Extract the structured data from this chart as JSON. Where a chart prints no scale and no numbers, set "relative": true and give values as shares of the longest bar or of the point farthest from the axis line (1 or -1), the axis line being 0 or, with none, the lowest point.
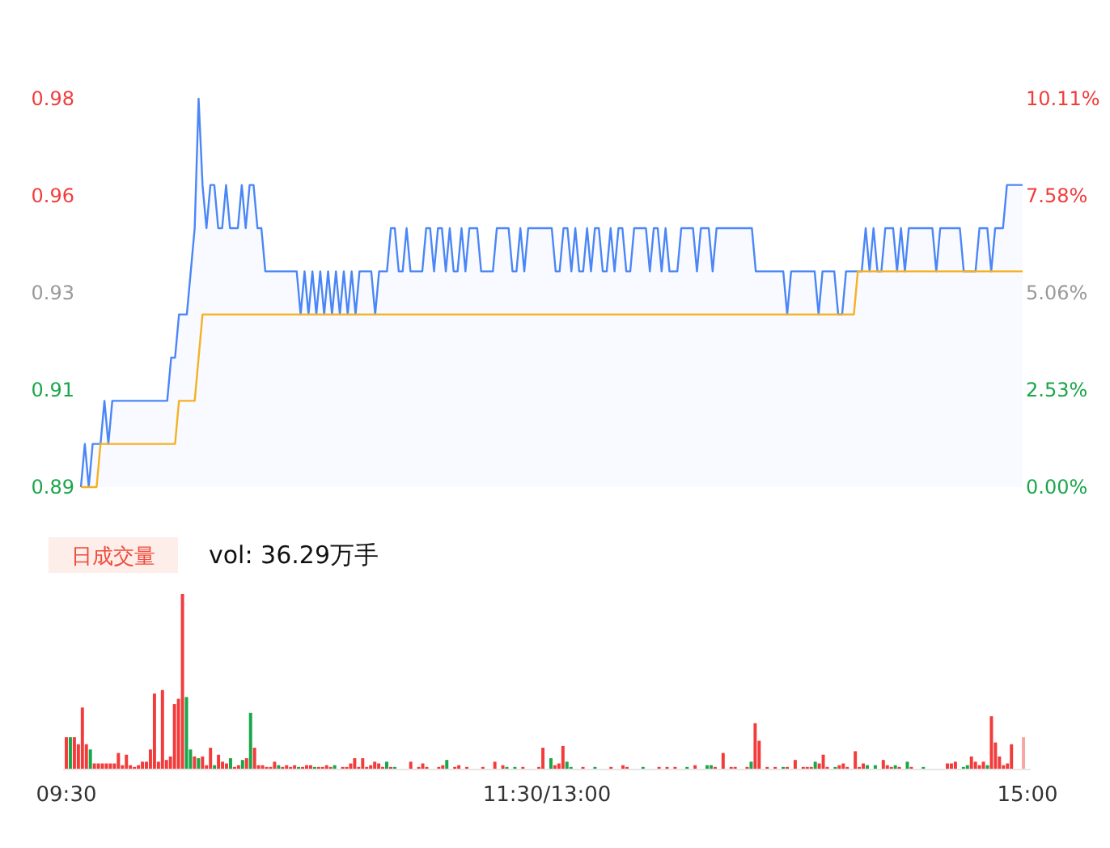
{
  "chart_data": [
    {
      "type": "line",
      "ylim": [
        0.89,
        0.98
      ],
      "yticks": [
        {
          "value": 0.89,
          "label": "0.89"
        },
        {
          "value": 0.9125,
          "label": "0.91"
        },
        {
          "value": 0.935,
          "label": "0.93"
        },
        {
          "value": 0.9575,
          "label": "0.96"
        },
        {
          "value": 0.98,
          "label": "0.98"
        }
      ],
      "y2lim": [
        0,
        10.11
      ],
      "y2ticks": [
        {
          "value": 0,
          "label": "0.00%"
        },
        {
          "value": 2.53,
          "label": "2.53%"
        },
        {
          "value": 5.06,
          "label": "5.06%"
        },
        {
          "value": 7.58,
          "label": "7.58%"
        },
        {
          "value": 10.11,
          "label": "10.11%"
        }
      ],
      "tick_labels": "y",
      "categories": [
        null,
        null,
        null,
        null,
        null,
        null,
        null,
        null,
        null,
        null,
        null,
        null,
        null,
        null,
        null,
        null,
        null,
        null,
        null,
        null,
        null,
        null,
        null,
        null,
        null,
        null,
        null,
        null,
        null,
        null,
        null,
        null,
        null,
        null,
        null,
        null,
        null,
        null,
        null,
        null,
        null,
        null,
        null,
        null,
        null,
        null,
        null,
        null,
        null,
        null,
        null,
        null,
        null,
        null,
        null,
        null,
        null,
        null,
        null,
        null,
        null,
        null,
        null,
        null,
        null,
        null,
        null,
        null,
        null,
        null,
        null,
        null,
        null,
        null,
        null,
        null,
        null,
        null,
        null,
        null,
        null,
        null,
        null,
        null,
        null,
        null,
        null,
        null,
        null,
        null,
        null,
        null,
        null,
        null,
        null,
        null,
        null,
        null,
        null,
        null,
        null,
        null,
        null,
        null,
        null,
        null,
        null,
        null,
        null,
        null,
        null,
        null,
        null,
        null,
        null,
        null,
        null,
        null,
        null,
        null,
        null,
        null,
        null,
        null,
        null,
        null,
        null,
        null,
        null,
        null,
        null,
        null,
        null,
        null,
        null,
        null,
        null,
        null,
        null,
        null,
        null,
        null,
        null,
        null,
        null,
        null,
        null,
        null,
        null,
        null,
        null,
        null,
        null,
        null,
        null,
        null,
        null,
        null,
        null,
        null,
        null,
        null,
        null,
        null,
        null,
        null,
        null,
        null,
        null,
        null,
        null,
        null,
        null,
        null,
        null,
        null,
        null,
        null,
        null,
        null,
        null,
        null,
        null,
        null,
        null,
        null,
        null,
        null,
        null,
        null,
        null,
        null,
        null,
        null,
        null,
        null,
        null,
        null,
        null,
        null,
        null,
        null,
        null,
        null,
        null,
        null,
        null,
        null,
        null,
        null,
        null,
        null,
        null,
        null,
        null,
        null,
        null,
        null,
        null,
        null,
        null,
        null,
        null,
        null,
        null,
        null,
        null,
        null,
        null,
        null,
        null,
        null,
        null,
        null,
        null,
        null,
        null,
        null,
        null,
        null,
        null
      ],
      "series": [
        {
          "type": "area",
          "color": "#4a86f7",
          "values": [
            0.89,
            0.9,
            0.89,
            0.9,
            0.9,
            0.9,
            0.91,
            0.9,
            0.91,
            0.91,
            0.91,
            0.91,
            0.91,
            0.91,
            0.91,
            0.91,
            0.91,
            0.91,
            0.91,
            0.91,
            0.91,
            0.91,
            0.91,
            0.92,
            0.92,
            0.93,
            0.93,
            0.93,
            0.94,
            0.95,
            0.98,
            0.96,
            0.95,
            0.96,
            0.96,
            0.95,
            0.95,
            0.96,
            0.95,
            0.95,
            0.95,
            0.96,
            0.95,
            0.96,
            0.96,
            0.95,
            0.95,
            0.94,
            0.94,
            0.94,
            0.94,
            0.94,
            0.94,
            0.94,
            0.94,
            0.94,
            0.93,
            0.94,
            0.93,
            0.94,
            0.93,
            0.94,
            0.93,
            0.94,
            0.93,
            0.94,
            0.93,
            0.94,
            0.93,
            0.94,
            0.93,
            0.94,
            0.94,
            0.94,
            0.94,
            0.93,
            0.94,
            0.94,
            0.94,
            0.95,
            0.95,
            0.94,
            0.94,
            0.95,
            0.94,
            0.94,
            0.94,
            0.94,
            0.95,
            0.95,
            0.94,
            0.95,
            0.95,
            0.94,
            0.95,
            0.94,
            0.94,
            0.95,
            0.94,
            0.95,
            0.95,
            0.95,
            0.94,
            0.94,
            0.94,
            0.94,
            0.95,
            0.95,
            0.95,
            0.95,
            0.94,
            0.94,
            0.95,
            0.94,
            0.95,
            0.95,
            0.95,
            0.95,
            0.95,
            0.95,
            0.95,
            0.94,
            0.94,
            0.95,
            0.95,
            0.94,
            0.95,
            0.94,
            0.94,
            0.95,
            0.94,
            0.95,
            0.95,
            0.94,
            0.94,
            0.95,
            0.94,
            0.95,
            0.95,
            0.94,
            0.94,
            0.95,
            0.95,
            0.95,
            0.95,
            0.94,
            0.95,
            0.95,
            0.94,
            0.95,
            0.94,
            0.94,
            0.94,
            0.95,
            0.95,
            0.95,
            0.95,
            0.94,
            0.95,
            0.95,
            0.95,
            0.94,
            0.95,
            0.95,
            0.95,
            0.95,
            0.95,
            0.95,
            0.95,
            0.95,
            0.95,
            0.95,
            0.94,
            0.94,
            0.94,
            0.94,
            0.94,
            0.94,
            0.94,
            0.94,
            0.93,
            0.94,
            0.94,
            0.94,
            0.94,
            0.94,
            0.94,
            0.94,
            0.93,
            0.94,
            0.94,
            0.94,
            0.94,
            0.93,
            0.93,
            0.94,
            0.94,
            0.94,
            0.94,
            0.94,
            0.95,
            0.94,
            0.95,
            0.94,
            0.94,
            0.95,
            0.95,
            0.95,
            0.94,
            0.95,
            0.94,
            0.95,
            0.95,
            0.95,
            0.95,
            0.95,
            0.95,
            0.95,
            0.94,
            0.95,
            0.95,
            0.95,
            0.95,
            0.95,
            0.95,
            0.94,
            0.94,
            0.94,
            0.94,
            0.95,
            0.95,
            0.95,
            0.94,
            0.95,
            0.95,
            0.95,
            0.96,
            0.96,
            0.96,
            0.96,
            0.96
          ]
        },
        {
          "type": "line",
          "color": "#f5b120",
          "values": [
            0.89,
            0.89,
            0.89,
            0.89,
            0.89,
            0.9,
            0.9,
            0.9,
            0.9,
            0.9,
            0.9,
            0.9,
            0.9,
            0.9,
            0.9,
            0.9,
            0.9,
            0.9,
            0.9,
            0.9,
            0.9,
            0.9,
            0.9,
            0.9,
            0.9,
            0.91,
            0.91,
            0.91,
            0.91,
            0.91,
            0.92,
            0.93,
            0.93,
            0.93,
            0.93,
            0.93,
            0.93,
            0.93,
            0.93,
            0.93,
            0.93,
            0.93,
            0.93,
            0.93,
            0.93,
            0.93,
            0.93,
            0.93,
            0.93,
            0.93,
            0.93,
            0.93,
            0.93,
            0.93,
            0.93,
            0.93,
            0.93,
            0.93,
            0.93,
            0.93,
            0.93,
            0.93,
            0.93,
            0.93,
            0.93,
            0.93,
            0.93,
            0.93,
            0.93,
            0.93,
            0.93,
            0.93,
            0.93,
            0.93,
            0.93,
            0.93,
            0.93,
            0.93,
            0.93,
            0.93,
            0.93,
            0.93,
            0.93,
            0.93,
            0.93,
            0.93,
            0.93,
            0.93,
            0.93,
            0.93,
            0.93,
            0.93,
            0.93,
            0.93,
            0.93,
            0.93,
            0.93,
            0.93,
            0.93,
            0.93,
            0.93,
            0.93,
            0.93,
            0.93,
            0.93,
            0.93,
            0.93,
            0.93,
            0.93,
            0.93,
            0.93,
            0.93,
            0.93,
            0.93,
            0.93,
            0.93,
            0.93,
            0.93,
            0.93,
            0.93,
            0.93,
            0.93,
            0.93,
            0.93,
            0.93,
            0.93,
            0.93,
            0.93,
            0.93,
            0.93,
            0.93,
            0.93,
            0.93,
            0.93,
            0.93,
            0.93,
            0.93,
            0.93,
            0.93,
            0.93,
            0.93,
            0.93,
            0.93,
            0.93,
            0.93,
            0.93,
            0.93,
            0.93,
            0.93,
            0.93,
            0.93,
            0.93,
            0.93,
            0.93,
            0.93,
            0.93,
            0.93,
            0.93,
            0.93,
            0.93,
            0.93,
            0.93,
            0.93,
            0.93,
            0.93,
            0.93,
            0.93,
            0.93,
            0.93,
            0.93,
            0.93,
            0.93,
            0.93,
            0.93,
            0.93,
            0.93,
            0.93,
            0.93,
            0.93,
            0.93,
            0.93,
            0.93,
            0.93,
            0.93,
            0.93,
            0.93,
            0.93,
            0.93,
            0.93,
            0.93,
            0.93,
            0.93,
            0.93,
            0.93,
            0.93,
            0.93,
            0.93,
            0.93,
            0.94,
            0.94,
            0.94,
            0.94,
            0.94,
            0.94,
            0.94,
            0.94,
            0.94,
            0.94,
            0.94,
            0.94,
            0.94,
            0.94,
            0.94,
            0.94,
            0.94,
            0.94,
            0.94,
            0.94,
            0.94,
            0.94,
            0.94,
            0.94,
            0.94,
            0.94,
            0.94,
            0.94,
            0.94,
            0.94,
            0.94,
            0.94,
            0.94,
            0.94,
            0.94,
            0.94,
            0.94,
            0.94,
            0.94,
            0.94,
            0.94,
            0.94,
            0.94
          ]
        }
      ]
    },
    {
      "type": "bar",
      "relative": true,
      "annotations": [
        "日成交量",
        "vol: 36.29万手"
      ],
      "categories": [
        "09:30",
        null,
        null,
        null,
        null,
        null,
        null,
        null,
        null,
        null,
        null,
        null,
        null,
        null,
        null,
        null,
        null,
        null,
        null,
        null,
        null,
        null,
        null,
        null,
        null,
        null,
        null,
        null,
        null,
        null,
        null,
        null,
        null,
        null,
        null,
        null,
        null,
        null,
        null,
        null,
        null,
        null,
        null,
        null,
        null,
        null,
        null,
        null,
        null,
        null,
        null,
        null,
        null,
        null,
        null,
        null,
        null,
        null,
        null,
        null,
        null,
        null,
        null,
        null,
        null,
        null,
        null,
        null,
        null,
        null,
        null,
        null,
        null,
        null,
        null,
        null,
        null,
        null,
        null,
        null,
        null,
        null,
        null,
        null,
        null,
        null,
        null,
        null,
        null,
        null,
        null,
        null,
        null,
        null,
        null,
        null,
        null,
        null,
        null,
        null,
        null,
        null,
        null,
        null,
        null,
        null,
        null,
        null,
        null,
        null,
        null,
        null,
        null,
        null,
        null,
        null,
        null,
        null,
        null,
        null,
        "11:30/13:00",
        null,
        null,
        null,
        null,
        null,
        null,
        null,
        null,
        null,
        null,
        null,
        null,
        null,
        null,
        null,
        null,
        null,
        null,
        null,
        null,
        null,
        null,
        null,
        null,
        null,
        null,
        null,
        null,
        null,
        null,
        null,
        null,
        null,
        null,
        null,
        null,
        null,
        null,
        null,
        null,
        null,
        null,
        null,
        null,
        null,
        null,
        null,
        null,
        null,
        null,
        null,
        null,
        null,
        null,
        null,
        null,
        null,
        null,
        null,
        null,
        null,
        null,
        null,
        null,
        null,
        null,
        null,
        null,
        null,
        null,
        null,
        null,
        null,
        null,
        null,
        null,
        null,
        null,
        null,
        null,
        null,
        null,
        null,
        null,
        null,
        null,
        null,
        null,
        null,
        null,
        null,
        null,
        null,
        null,
        null,
        null,
        null,
        null,
        null,
        null,
        null,
        null,
        null,
        null,
        null,
        null,
        null,
        null,
        null,
        null,
        null,
        null,
        null,
        null,
        null,
        null,
        null,
        null,
        null,
        "15:00"
      ],
      "values": [
        0.18,
        0.18,
        0.18,
        0.14,
        0.35,
        0.14,
        0.11,
        0.03,
        0.03,
        0.03,
        0.03,
        0.03,
        0.03,
        0.09,
        0.02,
        0.08,
        0.02,
        0.01,
        0.02,
        0.04,
        0.04,
        0.11,
        0.43,
        0.04,
        0.45,
        0.05,
        0.07,
        0.37,
        0.4,
        1,
        0.41,
        0.11,
        0.07,
        0.06,
        0.07,
        0.02,
        0.12,
        0.02,
        0.08,
        0.04,
        0.03,
        0.06,
        0.01,
        0.02,
        0.05,
        0.06,
        0.32,
        0.12,
        0.02,
        0.02,
        0.01,
        0.01,
        0.04,
        0.02,
        0.01,
        0.02,
        0.01,
        0.02,
        0.01,
        0.01,
        0.02,
        0.02,
        0.01,
        0.01,
        0.01,
        0.02,
        0.01,
        0.02,
        null,
        0.01,
        0.01,
        0.03,
        0.06,
        0.01,
        0.06,
        0.01,
        0.02,
        0.04,
        0.03,
        0.01,
        0.04,
        0.01,
        0.01,
        null,
        null,
        null,
        0.04,
        null,
        0.01,
        0.03,
        0.01,
        null,
        null,
        0.01,
        0.02,
        0.05,
        null,
        0.01,
        0.02,
        null,
        0.01,
        null,
        null,
        null,
        0.01,
        null,
        null,
        0.04,
        null,
        0.02,
        0.01,
        null,
        0.01,
        null,
        0.01,
        null,
        null,
        null,
        0.01,
        0.12,
        null,
        0.06,
        0.02,
        0.03,
        0.13,
        0.04,
        0.01,
        null,
        null,
        0.01,
        null,
        null,
        0.01,
        null,
        null,
        null,
        0.01,
        null,
        null,
        0.02,
        0.01,
        null,
        null,
        null,
        0.01,
        null,
        null,
        null,
        0.01,
        null,
        0.01,
        null,
        0.01,
        null,
        null,
        0.01,
        null,
        0.02,
        null,
        null,
        0.02,
        0.02,
        0.01,
        null,
        0.09,
        null,
        0.01,
        0.01,
        null,
        null,
        0.01,
        0.04,
        0.26,
        0.16,
        null,
        0.01,
        null,
        0.01,
        null,
        0.01,
        0.01,
        null,
        0.05,
        null,
        0.01,
        0.01,
        0.01,
        0.04,
        0.03,
        0.08,
        0.01,
        null,
        0.01,
        0.02,
        0.03,
        0.01,
        null,
        0.1,
        0.01,
        0.03,
        0.02,
        null,
        0.02,
        null,
        0.05,
        0.02,
        0.01,
        0.02,
        0.01,
        null,
        0.04,
        0.01,
        null,
        null,
        0.01,
        null,
        null,
        null,
        null,
        null,
        0.03,
        0.03,
        0.04,
        null,
        0.01,
        0.02,
        0.07,
        0.04,
        0.02,
        0.04,
        0.02,
        0.3,
        0.15,
        0.07,
        0.02,
        0.03,
        0.14,
        null,
        null,
        0.18,
        null
      ],
      "colors": [
        "#f23c3c",
        "#1aa64a",
        "#f23c3c",
        "#f23c3c",
        "#f23c3c",
        "#f23c3c",
        "#1aa64a",
        "#f23c3c",
        "#f23c3c",
        "#f23c3c",
        "#f23c3c",
        "#f23c3c",
        "#f23c3c",
        "#f23c3c",
        "#f23c3c",
        "#f23c3c",
        "#f23c3c",
        "#f23c3c",
        "#f23c3c",
        "#f23c3c",
        "#f23c3c",
        "#f23c3c",
        "#f23c3c",
        "#f23c3c",
        "#f23c3c",
        "#f23c3c",
        "#f23c3c",
        "#f23c3c",
        "#f23c3c",
        "#f23c3c",
        "#1aa64a",
        "#1aa64a",
        "#f23c3c",
        "#1aa64a",
        "#f23c3c",
        "#f23c3c",
        "#f23c3c",
        "#1aa64a",
        "#f23c3c",
        "#f23c3c",
        "#f23c3c",
        "#1aa64a",
        "#f23c3c",
        "#f23c3c",
        "#1aa64a",
        "#f23c3c",
        "#1aa64a",
        "#f23c3c",
        "#f23c3c",
        "#f23c3c",
        "#f23c3c",
        "#f23c3c",
        "#f23c3c",
        "#1aa64a",
        "#f23c3c",
        "#f23c3c",
        "#f23c3c",
        "#f23c3c",
        "#1aa64a",
        "#f23c3c",
        "#f23c3c",
        "#f23c3c",
        "#1aa64a",
        "#f23c3c",
        "#f23c3c",
        "#f23c3c",
        "#f23c3c",
        "#1aa64a",
        null,
        "#f23c3c",
        "#f23c3c",
        "#f23c3c",
        "#f23c3c",
        "#f23c3c",
        "#f23c3c",
        "#f23c3c",
        "#f23c3c",
        "#f23c3c",
        "#f23c3c",
        "#f23c3c",
        "#1aa64a",
        "#f23c3c",
        "#1aa64a",
        null,
        null,
        null,
        "#f23c3c",
        null,
        "#f23c3c",
        "#f23c3c",
        "#f23c3c",
        null,
        null,
        "#f23c3c",
        "#f23c3c",
        "#1aa64a",
        null,
        "#f23c3c",
        "#f23c3c",
        null,
        "#f23c3c",
        null,
        null,
        null,
        "#f23c3c",
        null,
        null,
        "#f23c3c",
        null,
        "#f23c3c",
        "#1aa64a",
        null,
        "#1aa64a",
        null,
        "#f23c3c",
        null,
        null,
        null,
        "#f23c3c",
        "#f23c3c",
        null,
        "#1aa64a",
        "#f23c3c",
        "#f23c3c",
        "#f23c3c",
        "#1aa64a",
        "#1aa64a",
        null,
        null,
        "#f23c3c",
        null,
        null,
        "#1aa64a",
        null,
        null,
        null,
        "#f23c3c",
        null,
        null,
        "#f23c3c",
        "#f23c3c",
        null,
        null,
        null,
        "#1aa64a",
        null,
        null,
        null,
        "#f23c3c",
        null,
        "#f23c3c",
        null,
        "#f23c3c",
        null,
        null,
        "#1aa64a",
        null,
        "#f23c3c",
        null,
        null,
        "#1aa64a",
        "#1aa64a",
        "#f23c3c",
        null,
        "#f23c3c",
        null,
        "#f23c3c",
        "#f23c3c",
        null,
        null,
        "#f23c3c",
        "#1aa64a",
        "#f23c3c",
        "#f23c3c",
        null,
        "#f23c3c",
        null,
        "#f23c3c",
        null,
        "#1aa64a",
        "#f23c3c",
        null,
        "#f23c3c",
        null,
        "#f23c3c",
        "#f23c3c",
        "#f23c3c",
        "#1aa64a",
        "#f23c3c",
        "#f23c3c",
        "#f23c3c",
        null,
        "#1aa64a",
        "#f23c3c",
        "#f23c3c",
        "#f23c3c",
        null,
        "#f23c3c",
        "#f23c3c",
        "#f23c3c",
        "#1aa64a",
        null,
        "#1aa64a",
        null,
        "#f23c3c",
        "#f23c3c",
        "#f23c3c",
        "#1aa64a",
        "#f23c3c",
        null,
        "#1aa64a",
        "#f23c3c",
        null,
        null,
        "#1aa64a",
        null,
        null,
        null,
        null,
        null,
        "#f23c3c",
        "#f23c3c",
        "#f23c3c",
        null,
        "#1aa64a",
        "#1aa64a",
        "#f23c3c",
        "#f23c3c",
        "#f23c3c",
        "#f23c3c",
        "#1aa64a",
        "#f23c3c",
        "#f23c3c",
        "#f23c3c",
        "#f23c3c",
        "#f23c3c",
        "#f23c3c",
        null,
        null,
        "#f7a6a6",
        null
      ]
    }
  ]
}
